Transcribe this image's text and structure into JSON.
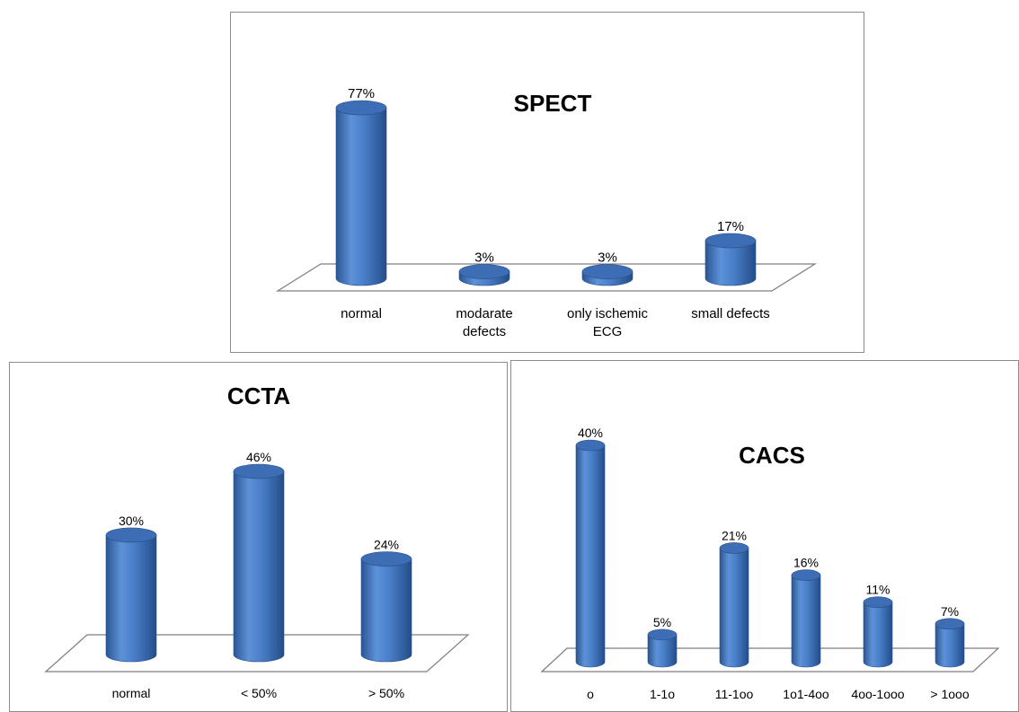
{
  "chart_data": [
    {
      "type": "bar",
      "title": "SPECT",
      "categories": [
        "normal",
        "modarate defects",
        "only ischemic ECG",
        "small defects"
      ],
      "category_lines": [
        [
          "normal"
        ],
        [
          "modarate",
          "defects"
        ],
        [
          "only ischemic",
          "ECG"
        ],
        [
          "small defects"
        ]
      ],
      "values": [
        77,
        3,
        3,
        17
      ],
      "labels": [
        "77%",
        "3%",
        "3%",
        "17%"
      ],
      "unit": "%",
      "ylim": [
        0,
        77
      ],
      "grid": false,
      "style": "3d-cylinder",
      "color": "#4a7fc9"
    },
    {
      "type": "bar",
      "title": "CCTA",
      "categories": [
        "normal",
        "< 50%",
        "> 50%"
      ],
      "category_lines": [
        [
          "normal"
        ],
        [
          "< 50%"
        ],
        [
          "> 50%"
        ]
      ],
      "values": [
        30,
        46,
        24
      ],
      "labels": [
        "30%",
        "46%",
        "24%"
      ],
      "unit": "%",
      "ylim": [
        0,
        46
      ],
      "grid": false,
      "style": "3d-cylinder",
      "color": "#4a7fc9"
    },
    {
      "type": "bar",
      "title": "CACS",
      "categories": [
        "o",
        "1-1o",
        "11-1oo",
        "1o1-4oo",
        "4oo-1ooo",
        "> 1ooo"
      ],
      "category_lines": [
        [
          "o"
        ],
        [
          "1-1o"
        ],
        [
          "11-1oo"
        ],
        [
          "1o1-4oo"
        ],
        [
          "4oo-1ooo"
        ],
        [
          "> 1ooo"
        ]
      ],
      "values": [
        40,
        5,
        21,
        16,
        11,
        7
      ],
      "labels": [
        "40%",
        "5%",
        "21%",
        "16%",
        "11%",
        "7%"
      ],
      "unit": "%",
      "ylim": [
        0,
        40
      ],
      "grid": false,
      "style": "3d-cylinder",
      "color": "#4a7fc9"
    }
  ]
}
